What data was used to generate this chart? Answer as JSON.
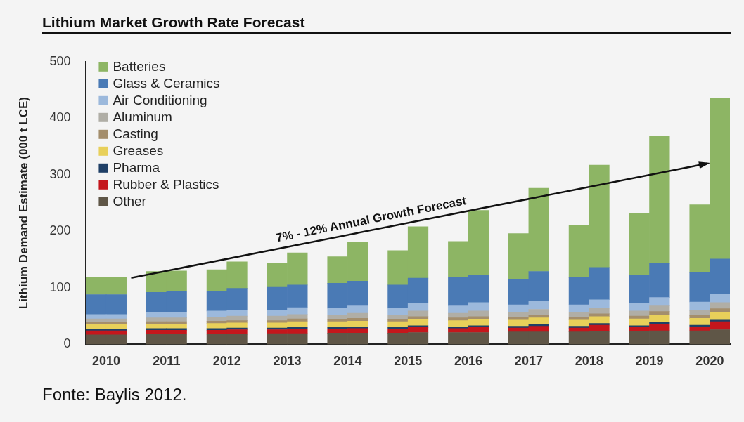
{
  "chart_data": {
    "type": "bar",
    "title": "Lithium Market Growth Rate Forecast",
    "ylabel": "Lithium Demand Estimate (000 t LCE)",
    "categories": [
      "2010",
      null,
      null,
      "2011",
      null,
      null,
      "2012",
      null,
      null,
      "2013",
      null,
      null,
      "2014",
      null,
      null,
      "2015",
      null,
      null,
      "2016",
      null,
      null,
      "2017",
      null,
      null,
      "2018",
      null,
      null,
      "2019",
      null,
      null,
      "2020",
      null
    ],
    "stacked": true,
    "ylim": [
      0,
      500
    ],
    "yticks": [
      0,
      100,
      200,
      300,
      400,
      500
    ],
    "grid": false,
    "legend": "top left",
    "series": [
      {
        "name": "Other",
        "color": "#5f5647",
        "values": [
          17,
          17,
          null,
          18,
          18,
          null,
          18,
          18,
          null,
          19,
          19,
          null,
          20,
          20,
          null,
          20,
          21,
          null,
          21,
          21,
          null,
          22,
          22,
          null,
          22,
          23,
          null,
          23,
          24,
          null,
          24,
          26
        ]
      },
      {
        "name": "Rubber & Plastics",
        "color": "#c4161c",
        "values": [
          7,
          7,
          null,
          7,
          7,
          null,
          7,
          8,
          null,
          7,
          8,
          null,
          7,
          8,
          null,
          7,
          9,
          null,
          7,
          9,
          null,
          7,
          10,
          null,
          7,
          11,
          null,
          7,
          12,
          null,
          7,
          14
        ]
      },
      {
        "name": "Pharma",
        "color": "#1f3f66",
        "values": [
          3,
          3,
          null,
          3,
          3,
          null,
          3,
          3,
          null,
          3,
          3,
          null,
          3,
          3,
          null,
          3,
          3,
          null,
          3,
          3,
          null,
          3,
          3,
          null,
          3,
          3,
          null,
          3,
          3,
          null,
          3,
          3
        ]
      },
      {
        "name": "Greases",
        "color": "#e8d05a",
        "values": [
          8,
          8,
          null,
          8,
          8,
          null,
          9,
          9,
          null,
          9,
          10,
          null,
          10,
          10,
          null,
          10,
          11,
          null,
          11,
          11,
          null,
          11,
          12,
          null,
          11,
          12,
          null,
          12,
          13,
          null,
          12,
          14
        ]
      },
      {
        "name": "Casting",
        "color": "#a48e6c",
        "values": [
          4,
          4,
          null,
          4,
          4,
          null,
          4,
          4,
          null,
          4,
          5,
          null,
          4,
          5,
          null,
          4,
          5,
          null,
          5,
          5,
          null,
          5,
          5,
          null,
          5,
          5,
          null,
          5,
          6,
          null,
          5,
          6
        ]
      },
      {
        "name": "Aluminum",
        "color": "#b0aea6",
        "values": [
          6,
          6,
          null,
          7,
          7,
          null,
          7,
          8,
          null,
          8,
          8,
          null,
          8,
          9,
          null,
          8,
          10,
          null,
          8,
          10,
          null,
          9,
          10,
          null,
          9,
          10,
          null,
          9,
          10,
          null,
          9,
          11
        ]
      },
      {
        "name": "Air Conditioning",
        "color": "#9cb9dc",
        "values": [
          8,
          8,
          null,
          10,
          10,
          null,
          11,
          11,
          null,
          11,
          12,
          null,
          12,
          13,
          null,
          12,
          14,
          null,
          13,
          15,
          null,
          13,
          14,
          null,
          13,
          15,
          null,
          14,
          15,
          null,
          15,
          15
        ]
      },
      {
        "name": "Glass & Ceramics",
        "color": "#4a7ab5",
        "values": [
          35,
          35,
          null,
          35,
          37,
          null,
          35,
          38,
          null,
          40,
          40,
          null,
          44,
          44,
          null,
          41,
          44,
          null,
          51,
          49,
          null,
          45,
          53,
          null,
          48,
          57,
          null,
          50,
          60,
          null,
          52,
          62
        ]
      },
      {
        "name": "Batteries",
        "color": "#8db564",
        "values": [
          31,
          31,
          null,
          37,
          36,
          null,
          38,
          47,
          null,
          42,
          57,
          null,
          47,
          69,
          null,
          61,
          91,
          null,
          63,
          114,
          null,
          81,
          147,
          null,
          93,
          181,
          null,
          108,
          225,
          null,
          120,
          284
        ]
      }
    ],
    "annotations": [
      "7% - 12% Annual Growth Forecast",
      "Fonte: Baylis 2012."
    ]
  }
}
